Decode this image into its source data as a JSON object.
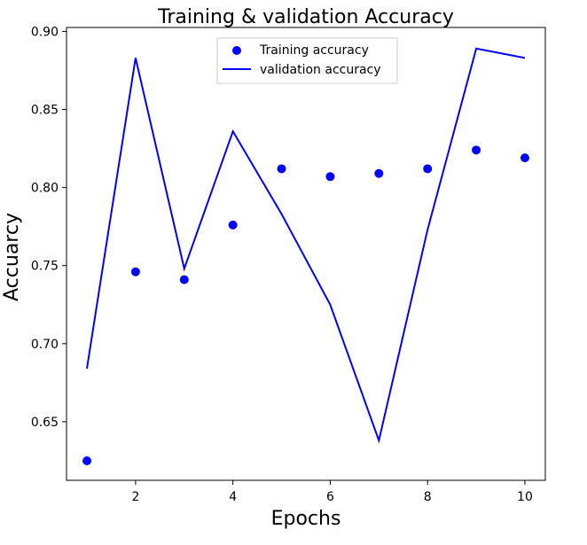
{
  "chart_data": {
    "type": "line",
    "title": "Training & validation Accuracy",
    "xlabel": "Epochs",
    "ylabel": "Accuarcy",
    "x": [
      1,
      2,
      3,
      4,
      5,
      6,
      7,
      8,
      9,
      10
    ],
    "xlim": [
      0.58,
      10.42
    ],
    "ylim": [
      0.6125,
      0.9025
    ],
    "xticks": [
      2,
      4,
      6,
      8,
      10
    ],
    "yticks": [
      0.65,
      0.7,
      0.75,
      0.8,
      0.85,
      0.9
    ],
    "xtick_labels": [
      "2",
      "4",
      "6",
      "8",
      "10"
    ],
    "ytick_labels": [
      "0.65",
      "0.70",
      "0.75",
      "0.80",
      "0.85",
      "0.90"
    ],
    "grid": false,
    "legend_position": "upper center",
    "series": [
      {
        "name": "Training accuracy",
        "style": "markers",
        "color": "#0000ff",
        "values": [
          0.625,
          0.746,
          0.741,
          0.776,
          0.812,
          0.807,
          0.809,
          0.812,
          0.824,
          0.819
        ]
      },
      {
        "name": "validation accuracy",
        "style": "line",
        "color": "#0000ff",
        "values": [
          0.684,
          0.883,
          0.748,
          0.836,
          0.783,
          0.725,
          0.638,
          0.773,
          0.889,
          0.883
        ]
      }
    ]
  }
}
